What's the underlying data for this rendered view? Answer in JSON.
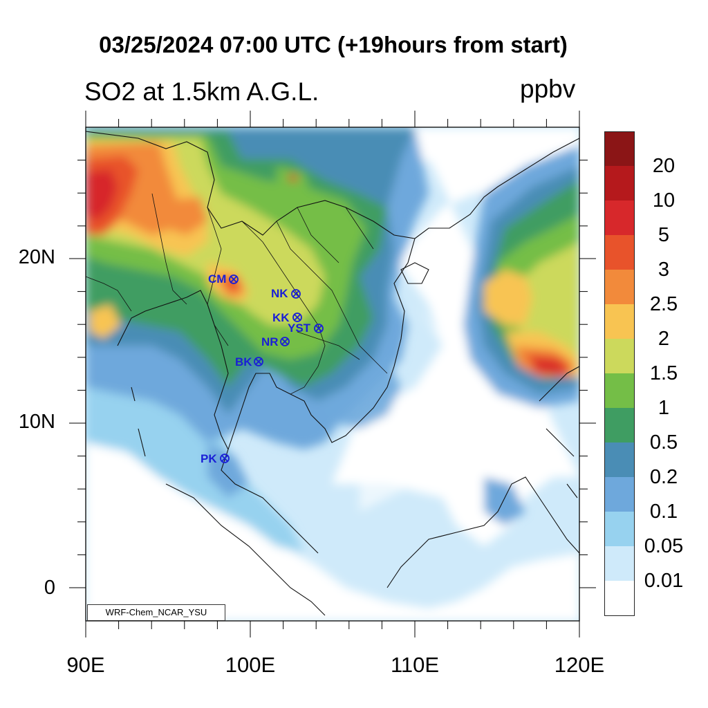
{
  "title": "03/25/2024 07:00 UTC (+19hours from start)",
  "subtitle": "SO2 at 1.5km A.G.L.",
  "units": "ppbv",
  "credit": "WRF-Chem_NCAR_YSU",
  "x_axis": {
    "ticks": [
      "90E",
      "100E",
      "110E",
      "120E"
    ]
  },
  "y_axis": {
    "ticks": [
      "20N",
      "10N",
      "0"
    ]
  },
  "legend": {
    "levels": [
      "20",
      "10",
      "5",
      "3",
      "2.5",
      "2",
      "1.5",
      "1",
      "0.5",
      "0.2",
      "0.1",
      "0.05",
      "0.01"
    ],
    "colors": [
      "#8b1516",
      "#b5191c",
      "#d7282b",
      "#e8532b",
      "#f28a3b",
      "#f8c452",
      "#ccd95c",
      "#74be47",
      "#3f9d62",
      "#4a8db5",
      "#6ea8dc",
      "#97d2ef",
      "#cfeafa",
      "#ffffff"
    ]
  },
  "stations": [
    {
      "label": "CM"
    },
    {
      "label": "NK"
    },
    {
      "label": "KK"
    },
    {
      "label": "YST"
    },
    {
      "label": "NR"
    },
    {
      "label": "BK"
    },
    {
      "label": "PK"
    }
  ],
  "chart_data": {
    "type": "heatmap",
    "title": "03/25/2024 07:00 UTC (+19hours from start)",
    "subtitle": "SO2 at 1.5km A.G.L.",
    "units": "ppbv",
    "xlim": [
      90,
      120
    ],
    "ylim": [
      -2,
      28
    ],
    "x_ticks": [
      90,
      100,
      110,
      120
    ],
    "y_ticks": [
      0,
      10,
      20
    ],
    "levels": [
      0.01,
      0.05,
      0.1,
      0.2,
      0.5,
      1,
      1.5,
      2,
      2.5,
      3,
      5,
      10,
      20
    ]
  }
}
